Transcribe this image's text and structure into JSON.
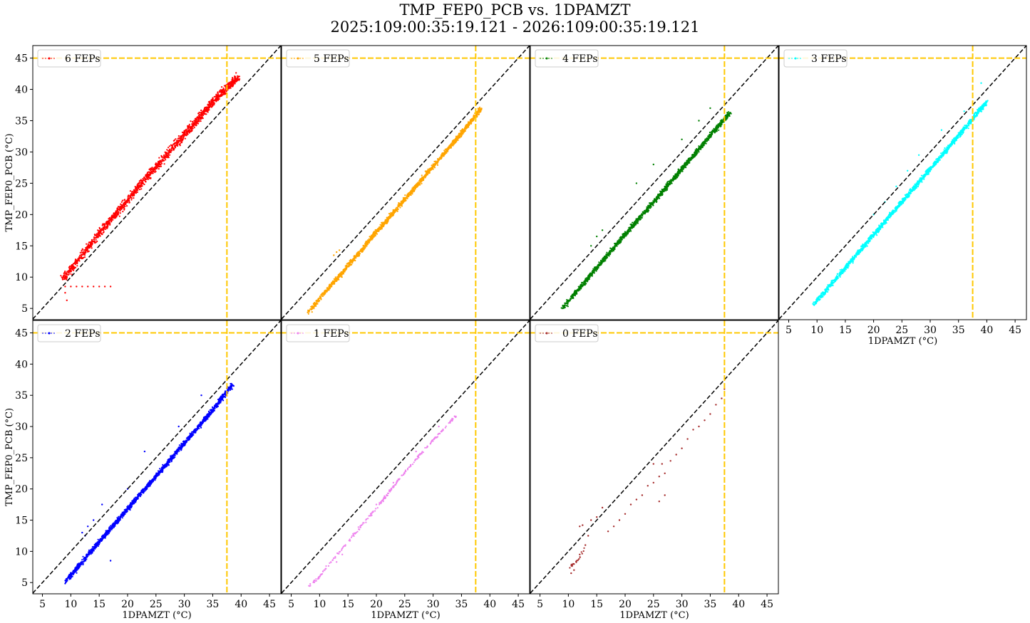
{
  "figure": {
    "title_line1": "TMP_FEP0_PCB vs. 1DPAMZT",
    "title_line2": "2025:109:00:35:19.121 - 2026:109:00:35:19.121"
  },
  "colors": {
    "reference_line": "#000000",
    "limit_line": "#ffc800",
    "frame": "#000000"
  },
  "chart_data": [
    {
      "type": "scatter",
      "panel": "6-feps",
      "legend": "6 FEPs",
      "color": "#ff0000",
      "xlabel": "",
      "ylabel": "TMP_FEP0_PCB (°C)",
      "xlim": [
        3.3,
        47
      ],
      "ylim": [
        3.2,
        47
      ],
      "xticks": [],
      "yticks": [
        5,
        10,
        15,
        20,
        25,
        30,
        35,
        40,
        45
      ],
      "limits": {
        "x": 37.5,
        "y": 45
      },
      "diagonal": true,
      "approx_trend": {
        "x": [
          8.7,
          12,
          15,
          20,
          25,
          30,
          35,
          39.5
        ],
        "y": [
          9.8,
          13.6,
          17,
          22.3,
          27.6,
          32.8,
          38,
          42
        ]
      },
      "outliers": [
        [
          9,
          8.5
        ],
        [
          10,
          8.5
        ],
        [
          11,
          8.5
        ],
        [
          12,
          8.5
        ],
        [
          13,
          8.5
        ],
        [
          14,
          8.5
        ],
        [
          15,
          8.5
        ],
        [
          16,
          8.5
        ],
        [
          17,
          8.5
        ],
        [
          9.3,
          6.3
        ],
        [
          9,
          7.5
        ]
      ]
    },
    {
      "type": "scatter",
      "panel": "5-feps",
      "legend": "5 FEPs",
      "color": "#ffa500",
      "xlabel": "",
      "ylabel": "",
      "xlim": [
        3.3,
        47
      ],
      "ylim": [
        3.2,
        47
      ],
      "xticks": [],
      "yticks": [],
      "limits": {
        "x": 37.5,
        "y": 45
      },
      "diagonal": true,
      "approx_trend": {
        "x": [
          8,
          10,
          15,
          20,
          25,
          30,
          35,
          38.5
        ],
        "y": [
          4.3,
          6.6,
          11.8,
          17.2,
          22.4,
          27.7,
          33,
          37
        ]
      },
      "outliers": [
        [
          13,
          14
        ],
        [
          12.5,
          13.5
        ],
        [
          13.5,
          14.3
        ]
      ]
    },
    {
      "type": "scatter",
      "panel": "4-feps",
      "legend": "4 FEPs",
      "color": "#008000",
      "xlabel": "",
      "ylabel": "",
      "xlim": [
        3.3,
        47
      ],
      "ylim": [
        3.2,
        47
      ],
      "xticks": [],
      "yticks": [],
      "limits": {
        "x": 37.5,
        "y": 45
      },
      "diagonal": true,
      "approx_trend": {
        "x": [
          9,
          12,
          15,
          20,
          25,
          30,
          35,
          38.5
        ],
        "y": [
          5.1,
          8.3,
          11.5,
          16.8,
          22,
          27.3,
          32.6,
          36.3
        ]
      },
      "outliers": [
        [
          14,
          15
        ],
        [
          16,
          17.5
        ],
        [
          15,
          16.5
        ],
        [
          22,
          25
        ],
        [
          25,
          28
        ],
        [
          30,
          32
        ],
        [
          33,
          35
        ],
        [
          35,
          37
        ]
      ]
    },
    {
      "type": "scatter",
      "panel": "3-feps",
      "legend": "3 FEPs",
      "color": "#00ffff",
      "xlabel": "1DPAMZT (°C)",
      "ylabel": "",
      "xlim": [
        3.3,
        47
      ],
      "ylim": [
        3.2,
        47
      ],
      "xticks": [
        5,
        10,
        15,
        20,
        25,
        30,
        35,
        40,
        45
      ],
      "yticks": [],
      "limits": {
        "x": 37.5,
        "y": 45
      },
      "diagonal": true,
      "approx_trend": {
        "x": [
          9.5,
          12,
          15,
          20,
          25,
          30,
          35,
          40
        ],
        "y": [
          5.7,
          8.3,
          11.5,
          16.8,
          22,
          27.3,
          32.6,
          38
        ]
      },
      "outliers": [
        [
          20,
          20
        ],
        [
          22,
          22
        ],
        [
          24,
          24.5
        ],
        [
          26,
          27
        ],
        [
          28,
          29.5
        ],
        [
          32,
          33.5
        ],
        [
          36,
          36.5
        ],
        [
          39,
          41
        ]
      ]
    },
    {
      "type": "scatter",
      "panel": "2-feps",
      "legend": "2 FEPs",
      "color": "#0000ff",
      "xlabel": "1DPAMZT (°C)",
      "ylabel": "TMP_FEP0_PCB (°C)",
      "xlim": [
        3.3,
        47
      ],
      "ylim": [
        3.2,
        47
      ],
      "xticks": [
        5,
        10,
        15,
        20,
        25,
        30,
        35,
        40,
        45
      ],
      "yticks": [
        5,
        10,
        15,
        20,
        25,
        30,
        35,
        40,
        45
      ],
      "limits": {
        "x": 37.5,
        "y": 45
      },
      "diagonal": true,
      "approx_trend": {
        "x": [
          9,
          12,
          15,
          20,
          25,
          30,
          35,
          38.5
        ],
        "y": [
          5.1,
          8.3,
          11.5,
          16.8,
          22,
          27.3,
          32.6,
          36.8
        ]
      },
      "outliers": [
        [
          12,
          13
        ],
        [
          13,
          14
        ],
        [
          12.5,
          12.5
        ],
        [
          14,
          15
        ],
        [
          15.5,
          17.5
        ],
        [
          17,
          8.5
        ],
        [
          20,
          20
        ],
        [
          23,
          26
        ],
        [
          29,
          30
        ],
        [
          33,
          35
        ]
      ]
    },
    {
      "type": "scatter",
      "panel": "1-fep",
      "legend": "1 FEPs",
      "color": "#ee82ee",
      "xlabel": "1DPAMZT (°C)",
      "ylabel": "",
      "xlim": [
        3.3,
        47
      ],
      "ylim": [
        3.2,
        47
      ],
      "xticks": [
        5,
        10,
        15,
        20,
        25,
        30,
        35,
        40,
        45
      ],
      "yticks": [],
      "limits": {
        "x": 37.5,
        "y": 45
      },
      "diagonal": true,
      "approx_trend": {
        "x": [
          8,
          10,
          12,
          15,
          18,
          21,
          24,
          27,
          30,
          34
        ],
        "y": [
          4.3,
          6,
          8.3,
          11.5,
          14.8,
          18,
          21.5,
          24.8,
          27.8,
          31.7
        ]
      },
      "outliers": [
        [
          13,
          8.3
        ],
        [
          14,
          9.5
        ],
        [
          17,
          13.5
        ],
        [
          20,
          17.5
        ],
        [
          23,
          21
        ],
        [
          27,
          26
        ],
        [
          31,
          30
        ]
      ]
    },
    {
      "type": "scatter",
      "panel": "0-feps",
      "legend": "0 FEPs",
      "color": "#a52a2a",
      "xlabel": "1DPAMZT (°C)",
      "ylabel": "",
      "xlim": [
        3.3,
        47
      ],
      "ylim": [
        3.2,
        47
      ],
      "xticks": [
        5,
        10,
        15,
        20,
        25,
        30,
        35,
        40,
        45
      ],
      "yticks": [],
      "limits": {
        "x": 37.5,
        "y": 45
      },
      "diagonal": true,
      "approx_trend": {
        "x": [
          10,
          11,
          12,
          12.5,
          13
        ],
        "y": [
          7.3,
          8,
          9,
          9.7,
          10.5
        ]
      },
      "outliers": [
        [
          12,
          14
        ],
        [
          12.5,
          14.2
        ],
        [
          13,
          11
        ],
        [
          13.5,
          12.5
        ],
        [
          14,
          15
        ],
        [
          15,
          15.5
        ],
        [
          16,
          17
        ],
        [
          17,
          13.2
        ],
        [
          18,
          14
        ],
        [
          19,
          15
        ],
        [
          20,
          16
        ],
        [
          21,
          17.5
        ],
        [
          22,
          18.3
        ],
        [
          23,
          19
        ],
        [
          24,
          20.5
        ],
        [
          25,
          21
        ],
        [
          25,
          24
        ],
        [
          26,
          22
        ],
        [
          26.5,
          24
        ],
        [
          27,
          22.5
        ],
        [
          28,
          24.5
        ],
        [
          29,
          25.5
        ],
        [
          30,
          26.5
        ],
        [
          31,
          28
        ],
        [
          32,
          29.5
        ],
        [
          33,
          30
        ],
        [
          34,
          31
        ],
        [
          35,
          32
        ],
        [
          36,
          33.5
        ],
        [
          37,
          34.5
        ],
        [
          37.5,
          36
        ],
        [
          26,
          18
        ],
        [
          27,
          19
        ],
        [
          11,
          7
        ],
        [
          10.5,
          6.5
        ],
        [
          11.5,
          8.5
        ],
        [
          12,
          9.5
        ]
      ]
    }
  ]
}
